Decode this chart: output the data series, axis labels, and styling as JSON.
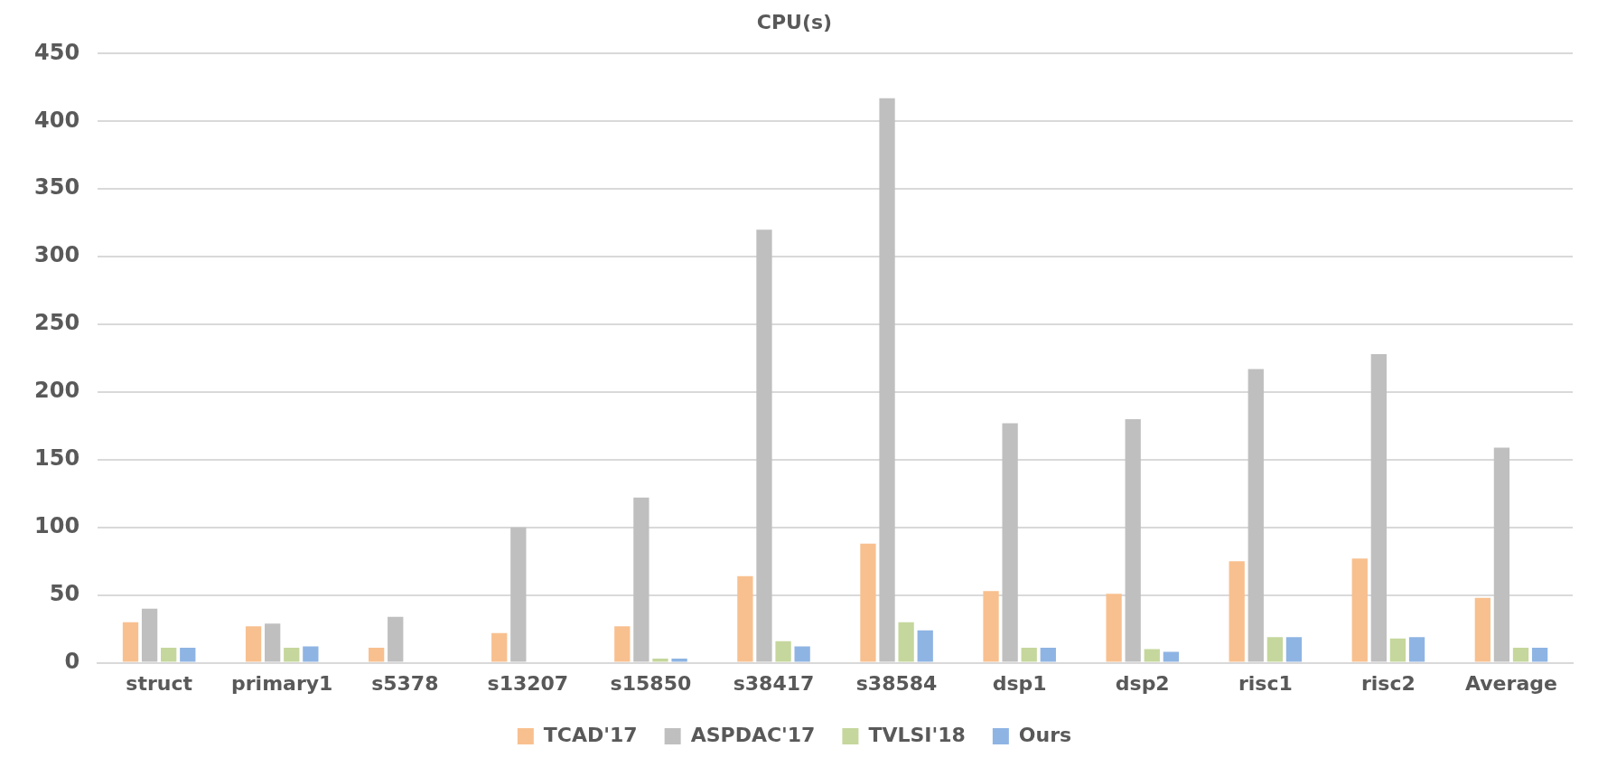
{
  "chart_data": {
    "type": "bar",
    "title": "CPU(s)",
    "categories": [
      "struct",
      "primary1",
      "s5378",
      "s13207",
      "s15850",
      "s38417",
      "s38584",
      "dsp1",
      "dsp2",
      "risc1",
      "risc2",
      "Average"
    ],
    "series": [
      {
        "name": "TCAD'17",
        "color": "#f8c08f",
        "values": [
          30,
          27,
          11,
          22,
          27,
          64,
          88,
          53,
          51,
          75,
          77,
          48
        ]
      },
      {
        "name": "ASPDAC'17",
        "color": "#bfbfbf",
        "values": [
          40,
          29,
          34,
          100,
          122,
          320,
          417,
          177,
          180,
          217,
          228,
          159
        ]
      },
      {
        "name": "TVLSI'18",
        "color": "#c5d79c",
        "values": [
          11,
          11,
          null,
          null,
          3,
          16,
          30,
          11,
          10,
          19,
          18,
          11
        ]
      },
      {
        "name": "Ours",
        "color": "#8eb4e3",
        "values": [
          11,
          12,
          null,
          null,
          3,
          12,
          24,
          11,
          8,
          19,
          19,
          11
        ]
      }
    ],
    "ylim": [
      0,
      450
    ],
    "yticks": [
      0,
      50,
      100,
      150,
      200,
      250,
      300,
      350,
      400,
      450
    ],
    "grid": "y",
    "legend": "bottom"
  }
}
